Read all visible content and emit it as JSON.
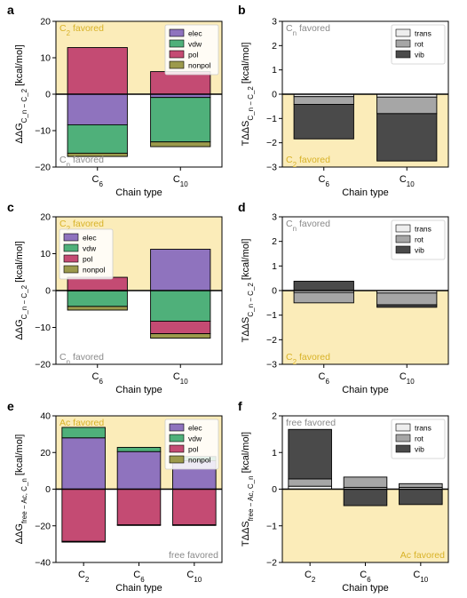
{
  "chart_data": [
    {
      "panel": "a",
      "type": "stacked-bar",
      "ylabel_main": "ΔΔG",
      "ylabel_sub": "C_n − C_2",
      "ylabel_unit": " [kcal/mol]",
      "xlabel": "Chain type",
      "ylim": [
        -20,
        20
      ],
      "yticks": [
        -20,
        -10,
        0,
        10,
        20
      ],
      "categories": [
        {
          "base": "C",
          "sub": "6"
        },
        {
          "base": "C",
          "sub": "10"
        }
      ],
      "series": [
        {
          "name": "elec",
          "color": "#8f73be",
          "values": [
            -8.4,
            -0.9
          ]
        },
        {
          "name": "vdw",
          "color": "#4fb07a",
          "values": [
            -7.8,
            -12.2
          ]
        },
        {
          "name": "pol",
          "color": "#c44b73",
          "values": [
            12.8,
            6.2
          ]
        },
        {
          "name": "nonpol",
          "color": "#9c9a4c",
          "values": [
            -0.9,
            -1.3
          ]
        }
      ],
      "positive_region": "C_2 favored",
      "negative_region": "C_n favored",
      "positive_label": {
        "base": "C",
        "sub": "2",
        "rest": " favored"
      },
      "negative_label": {
        "base": "C",
        "sub": "n",
        "rest": " favored"
      },
      "label_top": "positive",
      "legend": "top-right"
    },
    {
      "panel": "b",
      "type": "stacked-bar",
      "ylabel_main": "TΔΔS",
      "ylabel_sub": "C_n − C_2",
      "ylabel_unit": " [kcal/mol]",
      "xlabel": "Chain type",
      "ylim": [
        -3,
        3
      ],
      "yticks": [
        -3,
        -2,
        -1,
        0,
        1,
        2,
        3
      ],
      "categories": [
        {
          "base": "C",
          "sub": "6"
        },
        {
          "base": "C",
          "sub": "10"
        }
      ],
      "series": [
        {
          "name": "trans",
          "color": "#eeeeee",
          "values": [
            -0.1,
            -0.12
          ]
        },
        {
          "name": "rot",
          "color": "#a6a6a6",
          "values": [
            -0.32,
            -0.68
          ]
        },
        {
          "name": "vib",
          "color": "#4a4a4a",
          "values": [
            -1.42,
            -1.95
          ]
        }
      ],
      "positive_region": "C_n favored",
      "negative_region": "C_2 favored",
      "positive_label": {
        "base": "C",
        "sub": "n",
        "rest": " favored"
      },
      "negative_label": {
        "base": "C",
        "sub": "2",
        "rest": " favored"
      },
      "label_top": "positive",
      "legend": "top-right"
    },
    {
      "panel": "c",
      "type": "stacked-bar",
      "ylabel_main": "ΔΔG",
      "ylabel_sub": "C_n − C_2",
      "ylabel_unit": " [kcal/mol]",
      "xlabel": "Chain type",
      "ylim": [
        -20,
        20
      ],
      "yticks": [
        -20,
        -10,
        0,
        10,
        20
      ],
      "categories": [
        {
          "base": "C",
          "sub": "6"
        },
        {
          "base": "C",
          "sub": "10"
        }
      ],
      "series": [
        {
          "name": "elec",
          "color": "#8f73be",
          "values": [
            -0.1,
            11.2
          ]
        },
        {
          "name": "vdw",
          "color": "#4fb07a",
          "values": [
            -4.2,
            -8.3
          ]
        },
        {
          "name": "pol",
          "color": "#c44b73",
          "values": [
            3.6,
            -3.4
          ]
        },
        {
          "name": "nonpol",
          "color": "#9c9a4c",
          "values": [
            -1.0,
            -1.2
          ]
        }
      ],
      "positive_region": "C_2 favored",
      "negative_region": "C_n favored",
      "positive_label": {
        "base": "C",
        "sub": "2",
        "rest": " favored"
      },
      "negative_label": {
        "base": "C",
        "sub": "n",
        "rest": " favored"
      },
      "label_top": "positive",
      "legend": "top-left"
    },
    {
      "panel": "d",
      "type": "stacked-bar",
      "ylabel_main": "TΔΔS",
      "ylabel_sub": "C_n − C_2",
      "ylabel_unit": " [kcal/mol]",
      "xlabel": "Chain type",
      "ylim": [
        -3,
        3
      ],
      "yticks": [
        -3,
        -2,
        -1,
        0,
        1,
        2,
        3
      ],
      "categories": [
        {
          "base": "C",
          "sub": "6"
        },
        {
          "base": "C",
          "sub": "10"
        }
      ],
      "series": [
        {
          "name": "trans",
          "color": "#eeeeee",
          "values": [
            -0.08,
            -0.1
          ]
        },
        {
          "name": "rot",
          "color": "#a6a6a6",
          "values": [
            -0.42,
            -0.48
          ]
        },
        {
          "name": "vib",
          "color": "#4a4a4a",
          "values": [
            0.38,
            -0.1
          ]
        }
      ],
      "positive_region": "C_n favored",
      "negative_region": "C_2 favored",
      "positive_label": {
        "base": "C",
        "sub": "n",
        "rest": " favored"
      },
      "negative_label": {
        "base": "C",
        "sub": "2",
        "rest": " favored"
      },
      "label_top": "positive",
      "legend": "top-right"
    },
    {
      "panel": "e",
      "type": "stacked-bar",
      "ylabel_main": "ΔΔG",
      "ylabel_sub": "free − Ac, C_n",
      "ylabel_unit": " [kcal/mol]",
      "xlabel": "Chain type",
      "ylim": [
        -40,
        40
      ],
      "yticks": [
        -40,
        -20,
        0,
        20,
        40
      ],
      "categories": [
        {
          "base": "C",
          "sub": "2"
        },
        {
          "base": "C",
          "sub": "6"
        },
        {
          "base": "C",
          "sub": "10"
        }
      ],
      "series": [
        {
          "name": "elec",
          "color": "#8f73be",
          "values": [
            28.0,
            20.5,
            15.5
          ]
        },
        {
          "name": "vdw",
          "color": "#4fb07a",
          "values": [
            5.7,
            2.3,
            2.3
          ]
        },
        {
          "name": "pol",
          "color": "#c44b73",
          "values": [
            -28.5,
            -19.5,
            -19.5
          ]
        },
        {
          "name": "nonpol",
          "color": "#9c9a4c",
          "values": [
            -0.4,
            -0.3,
            -0.3
          ]
        }
      ],
      "positive_region": "Ac favored",
      "negative_region": "free favored",
      "positive_label": {
        "base": "Ac favored",
        "sub": "",
        "rest": ""
      },
      "negative_label": {
        "base": "free favored",
        "sub": "",
        "rest": ""
      },
      "label_top": "positive",
      "legend": "top-right"
    },
    {
      "panel": "f",
      "type": "stacked-bar",
      "ylabel_main": "TΔΔS",
      "ylabel_sub": "free − Ac, C_n",
      "ylabel_unit": " [kcal/mol]",
      "xlabel": "Chain type",
      "ylim": [
        -2,
        2
      ],
      "yticks": [
        -2,
        -1,
        0,
        1,
        2
      ],
      "categories": [
        {
          "base": "C",
          "sub": "2"
        },
        {
          "base": "C",
          "sub": "6"
        },
        {
          "base": "C",
          "sub": "10"
        }
      ],
      "series": [
        {
          "name": "trans",
          "color": "#eeeeee",
          "values": [
            0.08,
            0.05,
            0.05
          ]
        },
        {
          "name": "rot",
          "color": "#a6a6a6",
          "values": [
            0.2,
            0.28,
            0.1
          ]
        },
        {
          "name": "vib",
          "color": "#4a4a4a",
          "values": [
            1.35,
            -0.45,
            -0.42
          ]
        }
      ],
      "positive_region": "free favored",
      "negative_region": "Ac favored",
      "positive_label": {
        "base": "free favored",
        "sub": "",
        "rest": ""
      },
      "negative_label": {
        "base": "Ac favored",
        "sub": "",
        "rest": ""
      },
      "label_top": "positive",
      "legend": "top-right"
    }
  ],
  "style": {
    "favored_fill": "#fbecb9",
    "favored_text_yellow": "#d8b228",
    "favored_text_gray": "#8a8a8a"
  }
}
